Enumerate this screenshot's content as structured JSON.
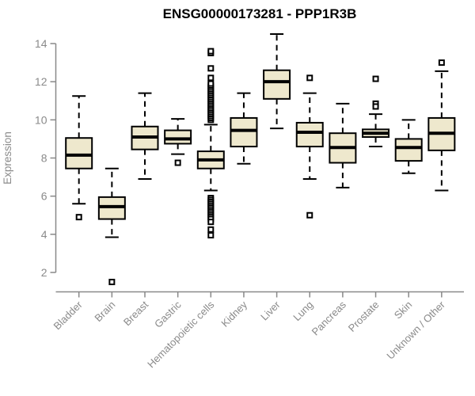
{
  "header": {
    "title": "ENSG00000173281 - PPP1R3B"
  },
  "colors": {
    "box_fill": "#EEE8CD",
    "box_stroke": "#000000",
    "axis": "#898989",
    "axis_text": "#8a8a8a",
    "title_text": "#000000",
    "background": "#ffffff"
  },
  "chart_data": {
    "type": "boxplot",
    "title": "ENSG00000173281 - PPP1R3B",
    "xlabel": "",
    "ylabel": "Expression",
    "ylim": [
      1.3,
      14.6
    ],
    "yticks": [
      2,
      4,
      6,
      8,
      10,
      12,
      14
    ],
    "grid": false,
    "legend": "none",
    "categories": [
      "Bladder",
      "Brain",
      "Breast",
      "Gastric",
      "Hematopoietic cells",
      "Kidney",
      "Liver",
      "Lung",
      "Pancreas",
      "Prostate",
      "Skin",
      "Unknown / Other"
    ],
    "boxes": [
      {
        "category": "Bladder",
        "whisker_low": 5.6,
        "q1": 7.45,
        "median": 8.15,
        "q3": 9.05,
        "whisker_high": 11.25,
        "outliers": [
          4.9
        ]
      },
      {
        "category": "Brain",
        "whisker_low": 3.85,
        "q1": 4.8,
        "median": 5.45,
        "q3": 5.95,
        "whisker_high": 7.45,
        "outliers": [
          1.5
        ]
      },
      {
        "category": "Breast",
        "whisker_low": 6.9,
        "q1": 8.45,
        "median": 9.1,
        "q3": 9.65,
        "whisker_high": 11.4,
        "outliers": []
      },
      {
        "category": "Gastric",
        "whisker_low": 8.2,
        "q1": 8.75,
        "median": 9.0,
        "q3": 9.45,
        "whisker_high": 10.05,
        "outliers": [
          7.75
        ]
      },
      {
        "category": "Hematopoietic cells",
        "whisker_low": 6.3,
        "q1": 7.45,
        "median": 7.9,
        "q3": 8.35,
        "whisker_high": 9.75,
        "outliers": [
          10.0,
          10.1,
          10.2,
          10.3,
          10.4,
          10.5,
          10.6,
          10.7,
          10.8,
          10.9,
          11.0,
          11.1,
          11.2,
          11.3,
          11.4,
          11.5,
          11.6,
          11.7,
          11.8,
          11.9,
          12.2,
          12.7,
          13.5,
          13.6,
          5.9,
          5.8,
          5.7,
          5.6,
          5.5,
          5.4,
          5.3,
          5.2,
          5.1,
          5.0,
          4.9,
          4.8,
          4.65,
          4.25,
          3.95
        ]
      },
      {
        "category": "Kidney",
        "whisker_low": 7.7,
        "q1": 8.6,
        "median": 9.45,
        "q3": 10.1,
        "whisker_high": 11.4,
        "outliers": []
      },
      {
        "category": "Liver",
        "whisker_low": 9.55,
        "q1": 11.1,
        "median": 12.0,
        "q3": 12.6,
        "whisker_high": 14.5,
        "outliers": []
      },
      {
        "category": "Lung",
        "whisker_low": 6.9,
        "q1": 8.6,
        "median": 9.35,
        "q3": 9.85,
        "whisker_high": 11.4,
        "outliers": [
          12.2,
          5.0
        ]
      },
      {
        "category": "Pancreas",
        "whisker_low": 6.45,
        "q1": 7.75,
        "median": 8.55,
        "q3": 9.3,
        "whisker_high": 10.85,
        "outliers": []
      },
      {
        "category": "Prostate",
        "whisker_low": 8.6,
        "q1": 9.1,
        "median": 9.3,
        "q3": 9.5,
        "whisker_high": 10.3,
        "outliers": [
          12.15,
          10.85,
          10.7
        ]
      },
      {
        "category": "Skin",
        "whisker_low": 7.2,
        "q1": 7.85,
        "median": 8.55,
        "q3": 9.0,
        "whisker_high": 10.0,
        "outliers": []
      },
      {
        "category": "Unknown / Other",
        "whisker_low": 6.3,
        "q1": 8.4,
        "median": 9.3,
        "q3": 10.1,
        "whisker_high": 12.55,
        "outliers": [
          13.0
        ]
      }
    ]
  }
}
